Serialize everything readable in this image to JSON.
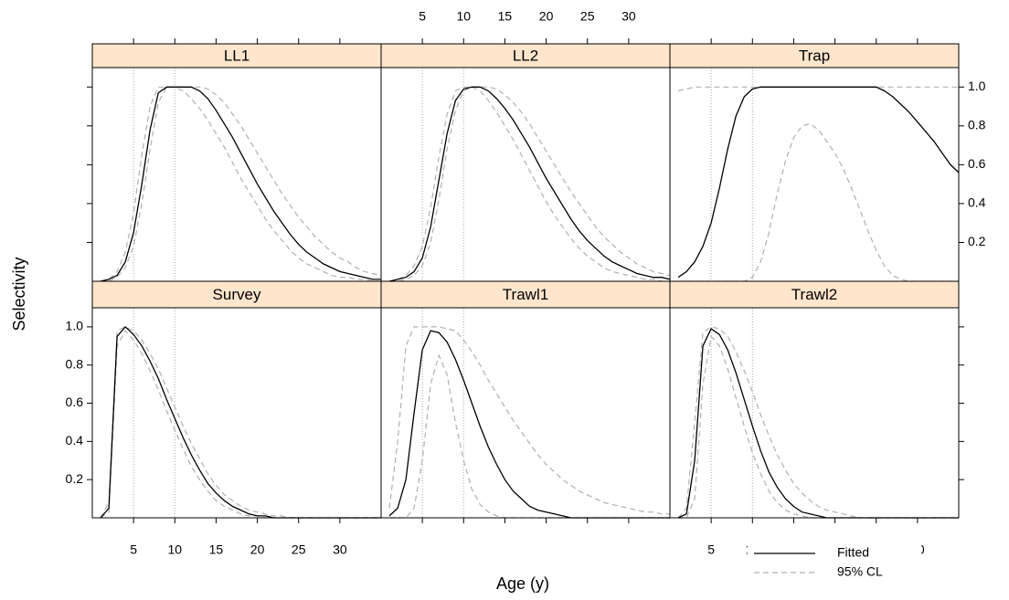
{
  "chart_data": {
    "type": "line",
    "xlabel": "Age (y)",
    "ylabel": "Selectivity",
    "x": [
      1,
      2,
      3,
      4,
      5,
      6,
      7,
      8,
      9,
      10,
      11,
      12,
      13,
      14,
      15,
      16,
      17,
      18,
      19,
      20,
      21,
      22,
      23,
      24,
      25,
      26,
      27,
      28,
      29,
      30,
      31,
      32,
      33,
      34,
      35
    ],
    "xlim": [
      0,
      35
    ],
    "xticks": [
      5,
      10,
      15,
      20,
      25,
      30
    ],
    "ylim": [
      0,
      1.1
    ],
    "yticks": [
      0.2,
      0.4,
      0.6,
      0.8,
      {
        "value": 1,
        "label": "1.0"
      }
    ],
    "reference_lines": [
      5,
      10
    ],
    "series": [
      {
        "name": "Fitted",
        "color": "#000000",
        "dash": "solid"
      },
      {
        "name": "95% CL",
        "color": "#b0b0b0",
        "dash": "dashed"
      }
    ],
    "panels": [
      {
        "title": "LL1",
        "fitted": [
          0,
          0.01,
          0.03,
          0.1,
          0.25,
          0.5,
          0.78,
          0.97,
          1,
          1,
          1,
          1,
          0.98,
          0.94,
          0.88,
          0.81,
          0.74,
          0.66,
          0.58,
          0.5,
          0.43,
          0.36,
          0.3,
          0.24,
          0.19,
          0.15,
          0.12,
          0.09,
          0.07,
          0.05,
          0.04,
          0.03,
          0.02,
          0.01,
          0.01
        ],
        "lower": [
          0,
          0,
          0.02,
          0.07,
          0.18,
          0.4,
          0.68,
          0.92,
          1,
          1,
          0.98,
          0.94,
          0.89,
          0.83,
          0.76,
          0.69,
          0.61,
          0.53,
          0.46,
          0.39,
          0.32,
          0.26,
          0.21,
          0.16,
          0.12,
          0.09,
          0.07,
          0.05,
          0.03,
          0.02,
          0.02,
          0.01,
          0.01,
          0,
          0
        ],
        "upper": [
          0,
          0.01,
          0.05,
          0.15,
          0.35,
          0.65,
          0.9,
          1,
          1,
          1,
          1,
          1,
          1,
          0.99,
          0.96,
          0.92,
          0.86,
          0.8,
          0.73,
          0.66,
          0.59,
          0.52,
          0.45,
          0.39,
          0.33,
          0.28,
          0.23,
          0.19,
          0.15,
          0.12,
          0.1,
          0.07,
          0.05,
          0.04,
          0.03
        ]
      },
      {
        "title": "LL2",
        "fitted": [
          0,
          0.01,
          0.02,
          0.05,
          0.12,
          0.28,
          0.52,
          0.76,
          0.93,
          0.99,
          1,
          1,
          0.98,
          0.94,
          0.89,
          0.83,
          0.76,
          0.69,
          0.61,
          0.53,
          0.46,
          0.39,
          0.32,
          0.26,
          0.21,
          0.17,
          0.13,
          0.1,
          0.08,
          0.06,
          0.04,
          0.03,
          0.02,
          0.02,
          0.01
        ],
        "lower": [
          0,
          0,
          0.01,
          0.03,
          0.08,
          0.2,
          0.42,
          0.68,
          0.88,
          0.98,
          1,
          0.98,
          0.93,
          0.87,
          0.8,
          0.73,
          0.65,
          0.57,
          0.49,
          0.41,
          0.34,
          0.28,
          0.22,
          0.17,
          0.13,
          0.1,
          0.07,
          0.05,
          0.04,
          0.03,
          0.02,
          0.01,
          0.01,
          0,
          0
        ],
        "upper": [
          0,
          0.01,
          0.03,
          0.08,
          0.18,
          0.38,
          0.64,
          0.86,
          0.98,
          1,
          1,
          1,
          1,
          0.99,
          0.96,
          0.92,
          0.87,
          0.81,
          0.74,
          0.67,
          0.6,
          0.53,
          0.46,
          0.4,
          0.34,
          0.28,
          0.23,
          0.19,
          0.15,
          0.12,
          0.09,
          0.07,
          0.05,
          0.04,
          0.03
        ]
      },
      {
        "title": "Trap",
        "fitted": [
          0.02,
          0.05,
          0.1,
          0.18,
          0.3,
          0.48,
          0.68,
          0.85,
          0.95,
          0.99,
          1,
          1,
          1,
          1,
          1,
          1,
          1,
          1,
          1,
          1,
          1,
          1,
          1,
          1,
          1,
          0.98,
          0.95,
          0.91,
          0.87,
          0.82,
          0.77,
          0.72,
          0.66,
          0.6,
          0.56
        ],
        "lower": [
          0,
          0,
          0,
          0,
          0,
          0,
          0,
          0,
          0,
          0.02,
          0.1,
          0.25,
          0.45,
          0.62,
          0.74,
          0.8,
          0.81,
          0.78,
          0.72,
          0.66,
          0.58,
          0.48,
          0.37,
          0.26,
          0.16,
          0.08,
          0.03,
          0.01,
          0,
          0,
          0,
          0,
          0,
          0,
          0
        ],
        "upper": [
          0.98,
          0.99,
          1,
          1,
          1,
          1,
          1,
          1,
          1,
          1,
          1,
          1,
          1,
          1,
          1,
          1,
          1,
          1,
          1,
          1,
          1,
          1,
          1,
          1,
          1,
          1,
          1,
          1,
          1,
          1,
          1,
          1,
          1,
          1,
          1
        ]
      },
      {
        "title": "Survey",
        "fitted": [
          0,
          0.05,
          0.95,
          1,
          0.96,
          0.9,
          0.82,
          0.73,
          0.62,
          0.52,
          0.42,
          0.33,
          0.25,
          0.18,
          0.13,
          0.09,
          0.06,
          0.04,
          0.02,
          0.01,
          0.01,
          0,
          0,
          0,
          0,
          0,
          0,
          0,
          0,
          0,
          0,
          0,
          0,
          0,
          0
        ],
        "lower": [
          0,
          0.03,
          0.9,
          0.98,
          0.93,
          0.86,
          0.77,
          0.67,
          0.56,
          0.46,
          0.36,
          0.27,
          0.2,
          0.14,
          0.09,
          0.06,
          0.04,
          0.02,
          0.01,
          0.01,
          0,
          0,
          0,
          0,
          0,
          0,
          0,
          0,
          0,
          0,
          0,
          0,
          0,
          0,
          0
        ],
        "upper": [
          0,
          0.08,
          0.98,
          1,
          0.98,
          0.93,
          0.86,
          0.78,
          0.68,
          0.58,
          0.48,
          0.39,
          0.31,
          0.23,
          0.17,
          0.12,
          0.09,
          0.06,
          0.04,
          0.03,
          0.02,
          0.01,
          0.01,
          0,
          0,
          0,
          0,
          0,
          0,
          0,
          0,
          0,
          0,
          0,
          0
        ]
      },
      {
        "title": "Trawl1",
        "fitted": [
          0.01,
          0.05,
          0.2,
          0.55,
          0.88,
          0.98,
          0.97,
          0.92,
          0.83,
          0.72,
          0.6,
          0.48,
          0.37,
          0.28,
          0.2,
          0.14,
          0.1,
          0.06,
          0.04,
          0.03,
          0.02,
          0.01,
          0,
          0,
          0,
          0,
          0,
          0,
          0,
          0,
          0,
          0,
          0,
          0,
          0
        ],
        "lower": [
          0,
          0,
          0,
          0.05,
          0.3,
          0.7,
          0.85,
          0.75,
          0.5,
          0.3,
          0.15,
          0.07,
          0.03,
          0.01,
          0,
          0,
          0,
          0,
          0,
          0,
          0,
          0,
          0,
          0,
          0,
          0,
          0,
          0,
          0,
          0,
          0,
          0,
          0,
          0,
          0
        ],
        "upper": [
          0.05,
          0.4,
          0.9,
          1,
          1,
          1,
          1,
          0.99,
          0.98,
          0.93,
          0.87,
          0.8,
          0.72,
          0.65,
          0.58,
          0.51,
          0.45,
          0.39,
          0.33,
          0.28,
          0.24,
          0.2,
          0.17,
          0.14,
          0.12,
          0.1,
          0.08,
          0.07,
          0.06,
          0.05,
          0.04,
          0.03,
          0.03,
          0.02,
          0.02
        ]
      },
      {
        "title": "Trawl2",
        "fitted": [
          0,
          0.02,
          0.3,
          0.9,
          0.99,
          0.96,
          0.88,
          0.76,
          0.62,
          0.48,
          0.35,
          0.24,
          0.16,
          0.1,
          0.06,
          0.03,
          0.02,
          0.01,
          0,
          0,
          0,
          0,
          0,
          0,
          0,
          0,
          0,
          0,
          0,
          0,
          0,
          0,
          0,
          0,
          0
        ],
        "lower": [
          0,
          0,
          0.1,
          0.7,
          0.95,
          0.9,
          0.78,
          0.63,
          0.48,
          0.34,
          0.23,
          0.14,
          0.08,
          0.04,
          0.02,
          0.01,
          0,
          0,
          0,
          0,
          0,
          0,
          0,
          0,
          0,
          0,
          0,
          0,
          0,
          0,
          0,
          0,
          0,
          0,
          0
        ],
        "upper": [
          0,
          0.05,
          0.5,
          0.97,
          1,
          0.99,
          0.95,
          0.87,
          0.77,
          0.66,
          0.54,
          0.43,
          0.33,
          0.25,
          0.18,
          0.13,
          0.09,
          0.06,
          0.04,
          0.03,
          0.02,
          0.01,
          0,
          0,
          0,
          0,
          0,
          0,
          0,
          0,
          0,
          0,
          0,
          0,
          0
        ]
      }
    ]
  }
}
